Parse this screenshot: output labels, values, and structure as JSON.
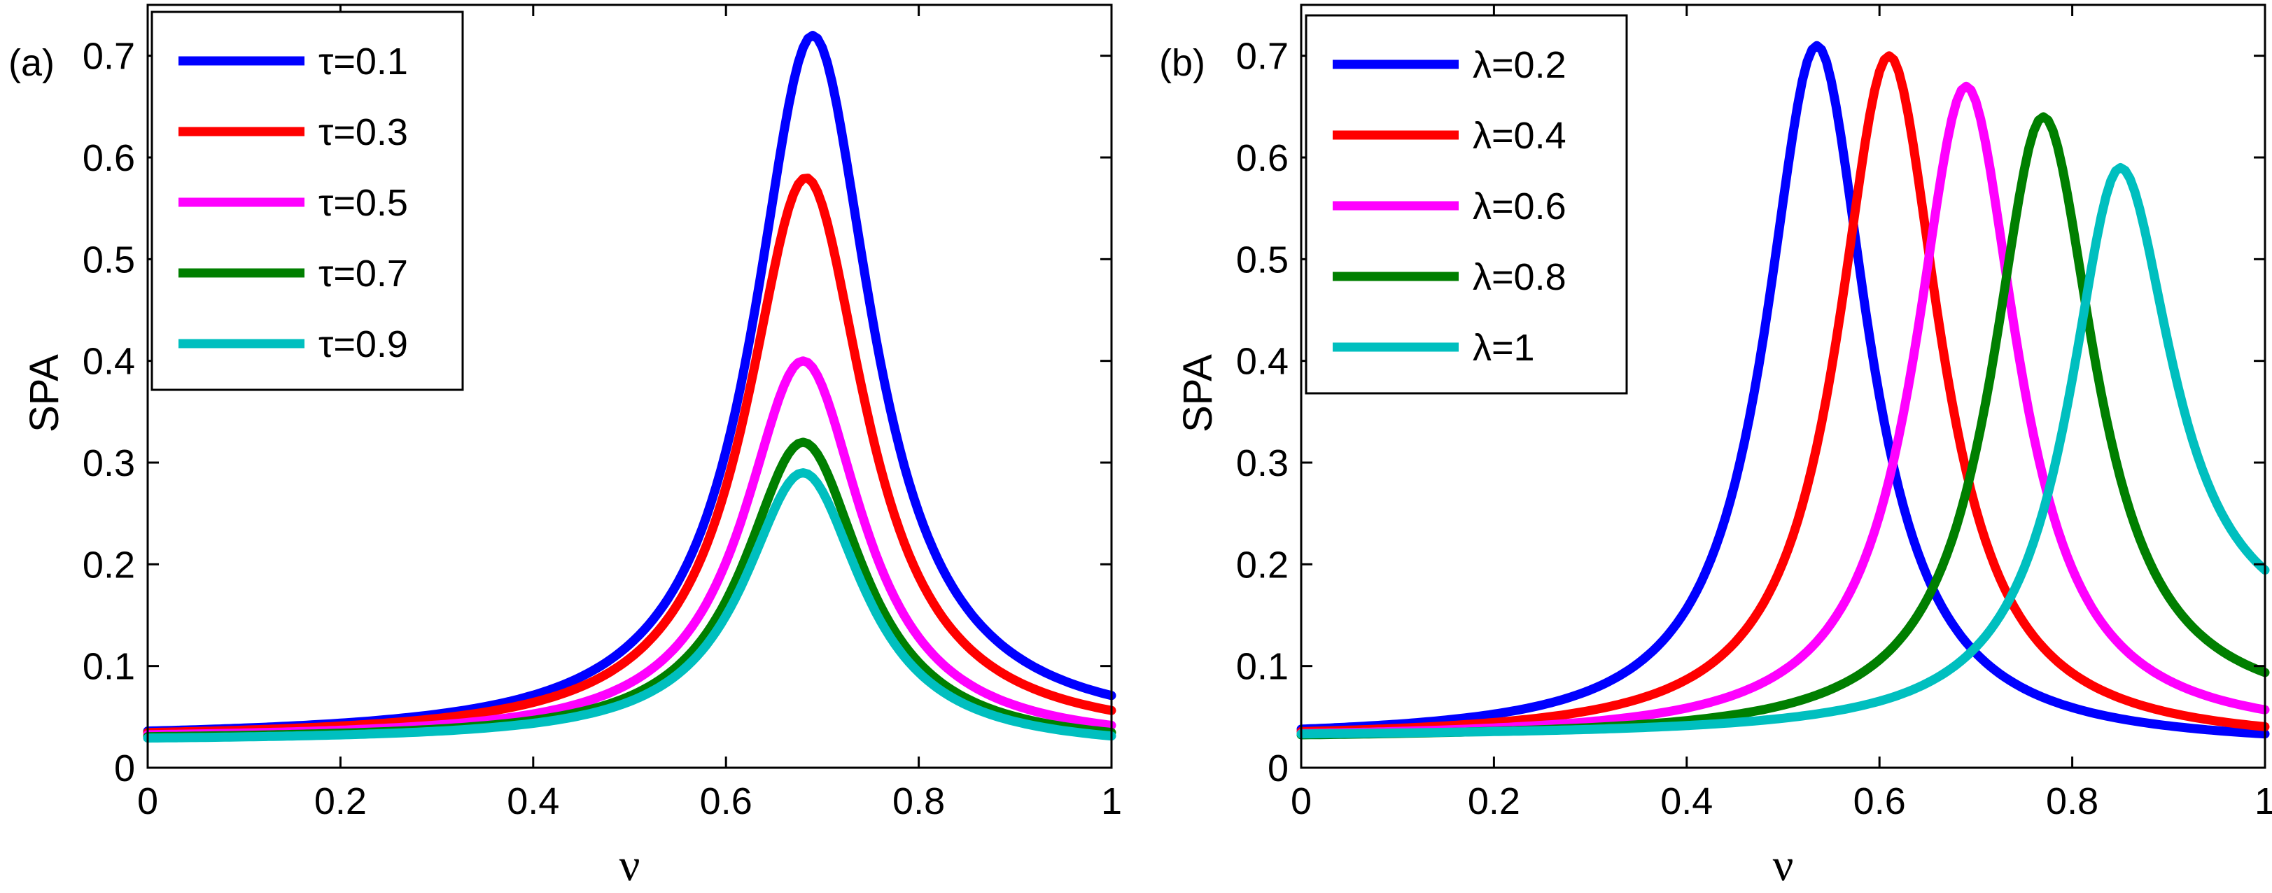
{
  "chart_data": [
    {
      "type": "line",
      "panel_label": "(a)",
      "xlabel": "ν",
      "ylabel": "SPA",
      "xlim": [
        0,
        1
      ],
      "ylim": [
        0,
        0.75
      ],
      "xticks": [
        "0",
        "0.2",
        "0.4",
        "0.6",
        "0.8",
        "1"
      ],
      "yticks": [
        "0",
        "0.1",
        "0.2",
        "0.3",
        "0.4",
        "0.5",
        "0.6",
        "0.7"
      ],
      "legend_position": "top-left",
      "grid": false,
      "series": [
        {
          "name": "τ=0.1",
          "color": "#0000ff",
          "peak_x": 0.69,
          "peak": 0.72,
          "base": 0.028,
          "width": 0.075,
          "tail": 0.033
        },
        {
          "name": "τ=0.3",
          "color": "#ff0000",
          "peak_x": 0.683,
          "peak": 0.58,
          "base": 0.028,
          "width": 0.075,
          "tail": 0.027
        },
        {
          "name": "τ=0.5",
          "color": "#ff00ff",
          "peak_x": 0.68,
          "peak": 0.4,
          "base": 0.028,
          "width": 0.075,
          "tail": 0.022
        },
        {
          "name": "τ=0.7",
          "color": "#007f00",
          "peak_x": 0.68,
          "peak": 0.32,
          "base": 0.027,
          "width": 0.075,
          "tail": 0.019
        },
        {
          "name": "τ=0.9",
          "color": "#00bfbf",
          "peak_x": 0.68,
          "peak": 0.29,
          "base": 0.026,
          "width": 0.075,
          "tail": 0.017
        }
      ]
    },
    {
      "type": "line",
      "panel_label": "(b)",
      "xlabel": "ν",
      "ylabel": "SPA",
      "xlim": [
        0,
        1
      ],
      "ylim": [
        0,
        0.75
      ],
      "xticks": [
        "0",
        "0.2",
        "0.4",
        "0.6",
        "0.8",
        "1"
      ],
      "yticks": [
        "0",
        "0.1",
        "0.2",
        "0.3",
        "0.4",
        "0.5",
        "0.6",
        "0.7"
      ],
      "legend_position": "top-left",
      "grid": false,
      "series": [
        {
          "name": "λ=0.2",
          "color": "#0000ff",
          "peak_x": 0.535,
          "peak": 0.71,
          "base": 0.028,
          "width": 0.065,
          "tail": 0.02
        },
        {
          "name": "λ=0.4",
          "color": "#ff0000",
          "peak_x": 0.61,
          "peak": 0.7,
          "base": 0.028,
          "width": 0.065,
          "tail": 0.022
        },
        {
          "name": "λ=0.6",
          "color": "#ff00ff",
          "peak_x": 0.69,
          "peak": 0.67,
          "base": 0.028,
          "width": 0.065,
          "tail": 0.03
        },
        {
          "name": "λ=0.8",
          "color": "#007f00",
          "peak_x": 0.77,
          "peak": 0.64,
          "base": 0.028,
          "width": 0.065,
          "tail": 0.05
        },
        {
          "name": "λ=1",
          "color": "#00bfbf",
          "peak_x": 0.85,
          "peak": 0.59,
          "base": 0.03,
          "width": 0.065,
          "tail": 0.12
        }
      ]
    }
  ]
}
